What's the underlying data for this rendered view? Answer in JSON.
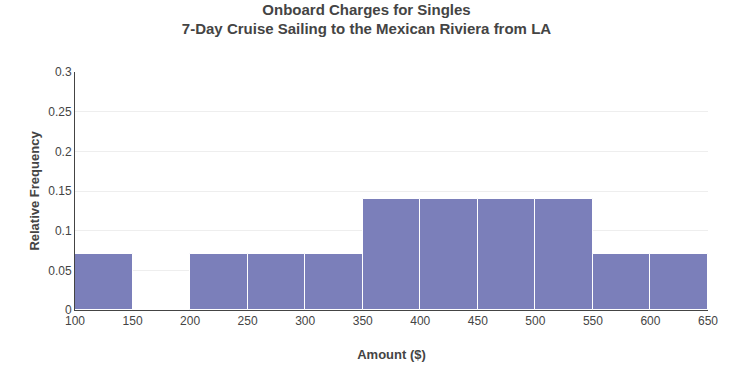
{
  "chart_data": {
    "type": "histogram",
    "title": "Onboard Charges for Singles",
    "subtitle": "7-Day Cruise Sailing to the Mexican Riviera from LA",
    "x_label": "Amount ($)",
    "y_label": "Relative Frequency",
    "bins": [
      100,
      150,
      200,
      250,
      300,
      350,
      400,
      450,
      500,
      550,
      600,
      650
    ],
    "values": [
      0.07,
      0.0,
      0.07,
      0.07,
      0.07,
      0.14,
      0.14,
      0.14,
      0.14,
      0.07,
      0.07
    ],
    "color": "#7b7fba",
    "xlim": [
      100,
      650
    ],
    "xticks": [
      100,
      150,
      200,
      250,
      300,
      350,
      400,
      450,
      500,
      550,
      600,
      650
    ],
    "ylim": [
      0,
      0.3
    ],
    "yticks": [
      0,
      0.05,
      0.1,
      0.15,
      0.2,
      0.25,
      0.3
    ],
    "grid": true
  }
}
